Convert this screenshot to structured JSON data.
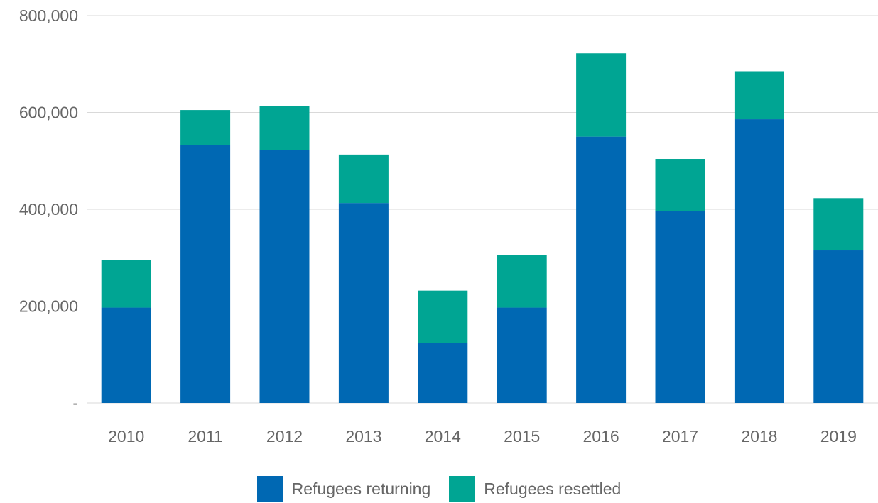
{
  "chart_data": {
    "type": "bar",
    "stacked": true,
    "categories": [
      "2010",
      "2011",
      "2012",
      "2013",
      "2014",
      "2015",
      "2016",
      "2017",
      "2018",
      "2019"
    ],
    "series": [
      {
        "name": "Refugees returning",
        "color": "#0068B3",
        "values": [
          197000,
          532000,
          523000,
          413000,
          124000,
          197000,
          550000,
          396000,
          586000,
          315000
        ]
      },
      {
        "name": "Refugees resettled",
        "color": "#00A593",
        "values": [
          98000,
          73000,
          90000,
          100000,
          108000,
          108000,
          172000,
          108000,
          99000,
          108000
        ]
      }
    ],
    "ylim": [
      0,
      800000
    ],
    "yticks": [
      0,
      200000,
      400000,
      600000,
      800000
    ],
    "ytick_labels": [
      "-",
      "200,000",
      "400,000",
      "600,000",
      "800,000"
    ],
    "grid": true,
    "legend_position": "bottom"
  }
}
